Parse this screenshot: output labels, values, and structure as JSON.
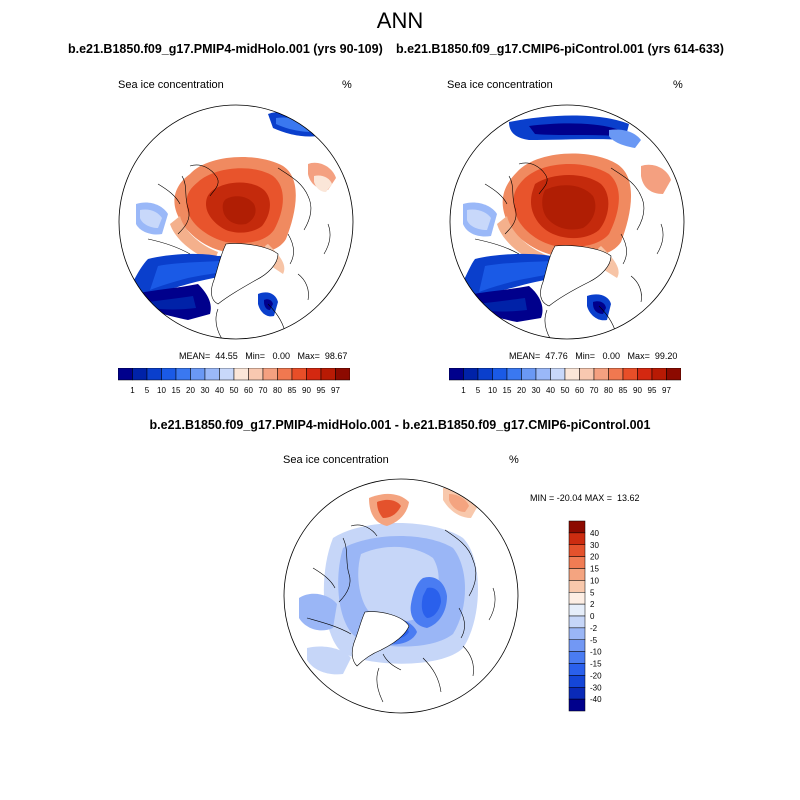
{
  "page_title": "ANN",
  "panels": [
    {
      "case_title": "b.e21.B1850.f09_g17.PMIP4-midHolo.001 (yrs 90-109)",
      "variable": "Sea ice concentration",
      "units": "%",
      "stats": "MEAN=  44.55   Min=   0.00   Max=  98.67"
    },
    {
      "case_title": "b.e21.B1850.f09_g17.CMIP6-piControl.001 (yrs 614-633)",
      "variable": "Sea ice concentration",
      "units": "%",
      "stats": "MEAN=  47.76   Min=   0.00   Max=  99.20"
    }
  ],
  "diff_panel": {
    "case_title": "b.e21.B1850.f09_g17.PMIP4-midHolo.001 - b.e21.B1850.f09_g17.CMIP6-piControl.001",
    "variable": "Sea ice concentration",
    "units": "%",
    "stats": "MIN = -20.04 MAX =  13.62"
  },
  "colors": {
    "colorbar_main": [
      "#00008c",
      "#0022a8",
      "#0a3fcc",
      "#1a5ae6",
      "#3a78f0",
      "#6a98f4",
      "#9ab8f8",
      "#c8d8fa",
      "#fbe6d8",
      "#f8c8b0",
      "#f4a080",
      "#f07850",
      "#e84e28",
      "#d42810",
      "#b81a04",
      "#8c0a00"
    ],
    "colorbar_diff": [
      "#00008c",
      "#0a2ab8",
      "#1446d8",
      "#2a60ec",
      "#4a7cf2",
      "#7298f4",
      "#9ab6f6",
      "#c6d6f8",
      "#e6eefa",
      "#fdeee4",
      "#f8c8ac",
      "#f4a480",
      "#f07c54",
      "#e4522c",
      "#cc2c10",
      "#8c0a00"
    ],
    "land_outline": "#000000"
  },
  "chart_data": [
    {
      "type": "heatmap",
      "projection": "north polar stereographic",
      "title": "b.e21.B1850.f09_g17.PMIP4-midHolo.001 (yrs 90-109)",
      "variable": "Sea ice concentration",
      "units": "%",
      "mean": 44.55,
      "min": 0.0,
      "max": 98.67,
      "colorbar_levels": [
        "1",
        "5",
        "10",
        "15",
        "20",
        "30",
        "40",
        "50",
        "60",
        "70",
        "80",
        "85",
        "90",
        "95",
        "97"
      ]
    },
    {
      "type": "heatmap",
      "projection": "north polar stereographic",
      "title": "b.e21.B1850.f09_g17.CMIP6-piControl.001 (yrs 614-633)",
      "variable": "Sea ice concentration",
      "units": "%",
      "mean": 47.76,
      "min": 0.0,
      "max": 99.2,
      "colorbar_levels": [
        "1",
        "5",
        "10",
        "15",
        "20",
        "30",
        "40",
        "50",
        "60",
        "70",
        "80",
        "85",
        "90",
        "95",
        "97"
      ]
    },
    {
      "type": "heatmap",
      "projection": "north polar stereographic",
      "title": "b.e21.B1850.f09_g17.PMIP4-midHolo.001 - b.e21.B1850.f09_g17.CMIP6-piControl.001",
      "variable": "Sea ice concentration",
      "units": "%",
      "min": -20.04,
      "max": 13.62,
      "colorbar_levels": [
        "40",
        "30",
        "20",
        "15",
        "10",
        "5",
        "2",
        "0",
        "-2",
        "-5",
        "-10",
        "-15",
        "-20",
        "-30",
        "-40"
      ]
    }
  ]
}
